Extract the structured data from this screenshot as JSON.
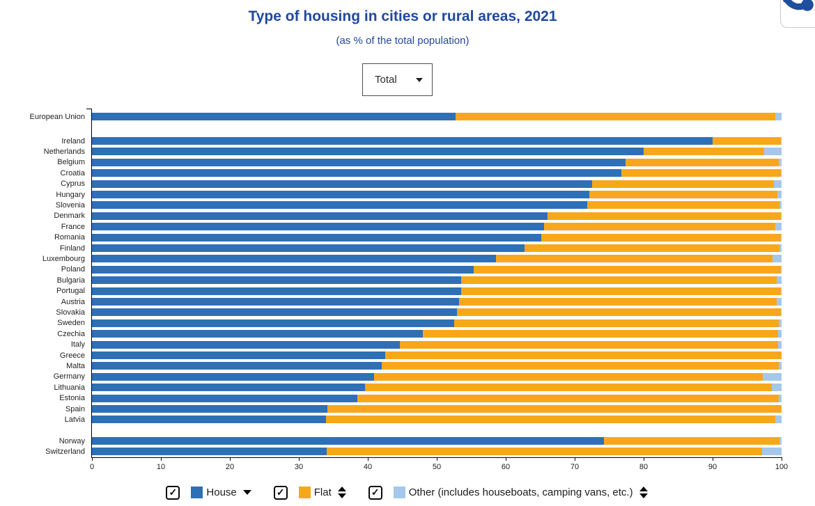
{
  "header": {
    "title": "Type of housing in cities or rural areas, 2021",
    "subtitle": "(as % of the total population)"
  },
  "controls": {
    "dataset_dropdown": {
      "value": "Total"
    },
    "share_button": {
      "icon": "share-icon"
    }
  },
  "chart_data": {
    "type": "bar",
    "stacked": true,
    "orientation": "horizontal",
    "unit": "% of the total population",
    "x_axis": {
      "min": 0,
      "max": 100,
      "ticks": [
        0,
        10,
        20,
        30,
        40,
        50,
        60,
        70,
        80,
        90,
        100
      ]
    },
    "series_names": [
      "House",
      "Flat",
      "Other (includes houseboats, camping vans, etc.)"
    ],
    "colors": {
      "house": "#2d70b8",
      "flat": "#f8a71c",
      "other": "#a5c8ea"
    },
    "rows": [
      {
        "name": "European Union",
        "house": 52.7,
        "flat": 46.4,
        "other": 0.9,
        "gap_after": true
      },
      {
        "name": "Ireland",
        "house": 90.0,
        "flat": 9.9,
        "other": 0.1
      },
      {
        "name": "Netherlands",
        "house": 80.0,
        "flat": 17.5,
        "other": 2.5
      },
      {
        "name": "Belgium",
        "house": 77.4,
        "flat": 22.2,
        "other": 0.4
      },
      {
        "name": "Croatia",
        "house": 76.8,
        "flat": 23.1,
        "other": 0.1
      },
      {
        "name": "Cyprus",
        "house": 72.5,
        "flat": 26.4,
        "other": 1.1
      },
      {
        "name": "Hungary",
        "house": 72.1,
        "flat": 27.3,
        "other": 0.6
      },
      {
        "name": "Slovenia",
        "house": 71.8,
        "flat": 27.9,
        "other": 0.3
      },
      {
        "name": "Denmark",
        "house": 66.1,
        "flat": 33.8,
        "other": 0.1
      },
      {
        "name": "France",
        "house": 65.6,
        "flat": 33.5,
        "other": 0.9
      },
      {
        "name": "Romania",
        "house": 65.2,
        "flat": 34.7,
        "other": 0.1
      },
      {
        "name": "Finland",
        "house": 62.7,
        "flat": 37.0,
        "other": 0.3
      },
      {
        "name": "Luxembourg",
        "house": 58.6,
        "flat": 40.1,
        "other": 1.3
      },
      {
        "name": "Poland",
        "house": 55.4,
        "flat": 44.5,
        "other": 0.1
      },
      {
        "name": "Bulgaria",
        "house": 53.5,
        "flat": 45.8,
        "other": 0.7
      },
      {
        "name": "Portugal",
        "house": 53.5,
        "flat": 46.4,
        "other": 0.1
      },
      {
        "name": "Austria",
        "house": 53.2,
        "flat": 46.1,
        "other": 0.7
      },
      {
        "name": "Slovakia",
        "house": 52.9,
        "flat": 47.0,
        "other": 0.1
      },
      {
        "name": "Sweden",
        "house": 52.5,
        "flat": 47.1,
        "other": 0.4
      },
      {
        "name": "Czechia",
        "house": 48.0,
        "flat": 51.5,
        "other": 0.5
      },
      {
        "name": "Italy",
        "house": 44.6,
        "flat": 54.9,
        "other": 0.5
      },
      {
        "name": "Greece",
        "house": 42.5,
        "flat": 57.5,
        "other": 0.0
      },
      {
        "name": "Malta",
        "house": 42.0,
        "flat": 57.6,
        "other": 0.4
      },
      {
        "name": "Germany",
        "house": 40.9,
        "flat": 56.4,
        "other": 2.7
      },
      {
        "name": "Lithuania",
        "house": 39.6,
        "flat": 59.0,
        "other": 1.4
      },
      {
        "name": "Estonia",
        "house": 38.5,
        "flat": 61.1,
        "other": 0.4
      },
      {
        "name": "Spain",
        "house": 34.1,
        "flat": 65.9,
        "other": 0.0
      },
      {
        "name": "Latvia",
        "house": 33.9,
        "flat": 65.2,
        "other": 0.9,
        "gap_after": true
      },
      {
        "name": "Norway",
        "house": 74.2,
        "flat": 25.5,
        "other": 0.3
      },
      {
        "name": "Switzerland",
        "house": 34.0,
        "flat": 63.2,
        "other": 2.8
      }
    ]
  },
  "legend": {
    "items": [
      {
        "label": "House",
        "color": "#2d70b8",
        "checked": true,
        "sort": "desc"
      },
      {
        "label": "Flat",
        "color": "#f8a71c",
        "checked": true,
        "sort": "both"
      },
      {
        "label": "Other (includes houseboats, camping vans, etc.)",
        "color": "#a5c8ea",
        "checked": true,
        "sort": "both"
      }
    ],
    "check_glyph": "✓"
  }
}
